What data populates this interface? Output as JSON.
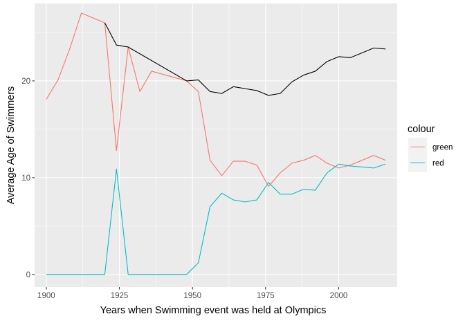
{
  "chart_data": {
    "type": "line",
    "title": "",
    "xlabel": "Years when Swimming event was held at Olympics",
    "ylabel": "Average Age of Swimmers",
    "xlim": [
      1896,
      2020
    ],
    "ylim": [
      -1.3,
      28.0
    ],
    "x_ticks": [
      1900,
      1925,
      1950,
      1975,
      2000
    ],
    "x_tick_labels": [
      "1900",
      "1925",
      "1950",
      "1975",
      "2000"
    ],
    "y_ticks": [
      0,
      10,
      20
    ],
    "y_tick_labels": [
      "0",
      "10",
      "20"
    ],
    "grid": true,
    "legend": {
      "title": "colour",
      "position": "right",
      "entries": [
        "green",
        "red"
      ]
    },
    "series": [
      {
        "name": "green",
        "color": "#F8766D",
        "x": [
          1900,
          1904,
          1908,
          1912,
          1920,
          1924,
          1928,
          1932,
          1936,
          1948,
          1952,
          1956,
          1960,
          1964,
          1968,
          1972,
          1976,
          1980,
          1984,
          1988,
          1992,
          1996,
          2000,
          2004,
          2008,
          2012,
          2016
        ],
        "y": [
          18.1,
          20.1,
          23.3,
          27.0,
          26.0,
          12.8,
          23.5,
          18.9,
          21.0,
          20.0,
          18.9,
          11.8,
          10.2,
          11.7,
          11.7,
          11.3,
          9.1,
          10.5,
          11.5,
          11.8,
          12.3,
          11.5,
          11.0,
          11.3,
          11.8,
          12.3,
          11.8
        ]
      },
      {
        "name": "red",
        "color": "#00BFC4",
        "x": [
          1900,
          1904,
          1908,
          1912,
          1920,
          1924,
          1928,
          1932,
          1936,
          1948,
          1952,
          1956,
          1960,
          1964,
          1968,
          1972,
          1976,
          1980,
          1984,
          1988,
          1992,
          1996,
          2000,
          2004,
          2008,
          2012,
          2016
        ],
        "y": [
          0,
          0,
          0,
          0,
          0,
          10.9,
          0,
          0,
          0,
          0,
          1.2,
          7.0,
          8.4,
          7.7,
          7.5,
          7.7,
          9.5,
          8.3,
          8.3,
          8.8,
          8.7,
          10.5,
          11.4,
          11.2,
          11.1,
          11.0,
          11.4
        ]
      },
      {
        "name": "",
        "color": "#000000",
        "x": [
          1920,
          1924,
          1928,
          1948,
          1952,
          1956,
          1960,
          1964,
          1968,
          1972,
          1976,
          1980,
          1984,
          1988,
          1992,
          1996,
          2000,
          2004,
          2008,
          2012,
          2016
        ],
        "y": [
          26.0,
          23.7,
          23.5,
          20.0,
          20.1,
          18.9,
          18.7,
          19.4,
          19.2,
          19.0,
          18.5,
          18.7,
          19.9,
          20.6,
          21.0,
          22.0,
          22.5,
          22.4,
          22.9,
          23.4,
          23.3
        ]
      }
    ]
  }
}
